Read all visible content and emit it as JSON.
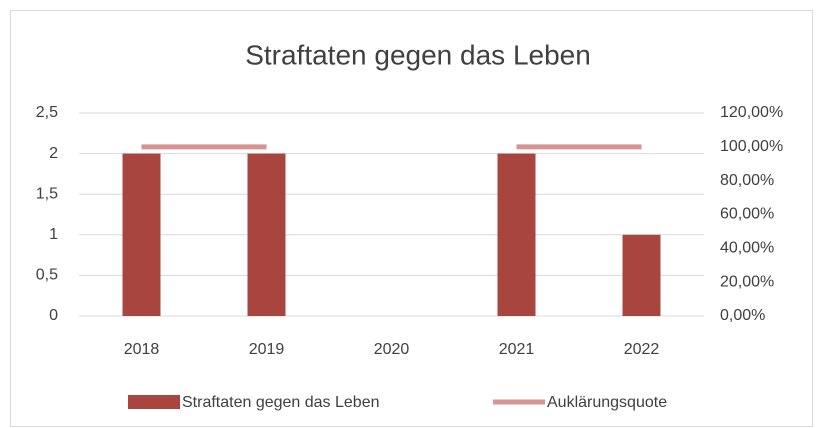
{
  "chart_data": {
    "type": "combo",
    "title": "Straftaten gegen das Leben",
    "categories": [
      "2018",
      "2019",
      "2020",
      "2021",
      "2022"
    ],
    "series": [
      {
        "name": "Straftaten gegen das Leben",
        "type": "bar",
        "color": "#a8453f",
        "values": [
          2,
          2,
          0,
          2,
          1
        ]
      },
      {
        "name": "Auklärungsquote",
        "type": "line",
        "axis": "y2",
        "color": "#d69593",
        "values": [
          100,
          100,
          null,
          100,
          100
        ]
      }
    ],
    "ylim": [
      0,
      2.5
    ],
    "yticks": [
      0,
      {
        "value": 0.5,
        "label": "0,5"
      },
      1,
      {
        "value": 1.5,
        "label": "1,5"
      },
      2,
      {
        "value": 2.5,
        "label": "2,5"
      }
    ],
    "y2lim": [
      0,
      120
    ],
    "y2ticks": [
      {
        "value": 0,
        "label": "0,00%"
      },
      {
        "value": 20,
        "label": "20,00%"
      },
      {
        "value": 40,
        "label": "40,00%"
      },
      {
        "value": 60,
        "label": "60,00%"
      },
      {
        "value": 80,
        "label": "80,00%"
      },
      {
        "value": 100,
        "label": "100,00%"
      },
      {
        "value": 120,
        "label": "120,00%"
      }
    ],
    "grid": true,
    "legend": "bottom"
  }
}
